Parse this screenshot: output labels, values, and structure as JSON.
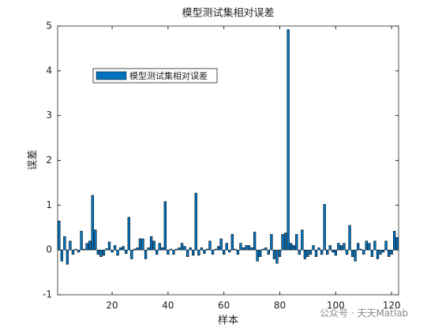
{
  "chart_data": {
    "type": "bar",
    "title": "模型测试集相对误差",
    "xlabel": "样本",
    "ylabel": "误差",
    "x": [
      1,
      2,
      3,
      4,
      5,
      6,
      7,
      8,
      9,
      10,
      11,
      12,
      13,
      14,
      15,
      16,
      17,
      18,
      19,
      20,
      21,
      22,
      23,
      24,
      25,
      26,
      27,
      28,
      29,
      30,
      31,
      32,
      33,
      34,
      35,
      36,
      37,
      38,
      39,
      40,
      41,
      42,
      43,
      44,
      45,
      46,
      47,
      48,
      49,
      50,
      51,
      52,
      53,
      54,
      55,
      56,
      57,
      58,
      59,
      60,
      61,
      62,
      63,
      64,
      65,
      66,
      67,
      68,
      69,
      70,
      71,
      72,
      73,
      74,
      75,
      76,
      77,
      78,
      79,
      80,
      81,
      82,
      83,
      84,
      85,
      86,
      87,
      88,
      89,
      90,
      91,
      92,
      93,
      94,
      95,
      96,
      97,
      98,
      99,
      100,
      101,
      102,
      103,
      104,
      105,
      106,
      107,
      108,
      109,
      110,
      111,
      112,
      113,
      114,
      115,
      116,
      117,
      118,
      119,
      120,
      121,
      122
    ],
    "series": [
      {
        "name": "模型测试集相对误差",
        "color": "#0072bd",
        "values": [
          0.65,
          -0.25,
          0.3,
          -0.32,
          0.2,
          -0.1,
          0.02,
          -0.05,
          0.42,
          0.02,
          0.15,
          0.2,
          1.22,
          0.45,
          -0.1,
          -0.15,
          -0.12,
          0.03,
          0.18,
          -0.05,
          0.1,
          -0.12,
          0.05,
          0.08,
          -0.08,
          0.73,
          -0.2,
          0.02,
          0.05,
          0.25,
          0.25,
          -0.2,
          0.05,
          0.3,
          0.2,
          -0.1,
          0.15,
          0.05,
          1.08,
          -0.1,
          0.02,
          -0.1,
          0.02,
          0.05,
          0.15,
          0.08,
          -0.15,
          0.05,
          -0.12,
          1.27,
          -0.12,
          0.05,
          -0.08,
          0.02,
          0.2,
          -0.1,
          0.02,
          0.08,
          0.25,
          -0.1,
          0.15,
          -0.05,
          0.35,
          0.02,
          -0.1,
          0.15,
          0.05,
          0.1,
          0.1,
          0.05,
          0.4,
          -0.25,
          -0.15,
          0.02,
          0.05,
          -0.1,
          0.35,
          -0.2,
          -0.3,
          -0.15,
          0.35,
          0.38,
          4.92,
          0.15,
          0.1,
          0.35,
          -0.1,
          0.45,
          -0.2,
          -0.15,
          -0.1,
          0.1,
          -0.15,
          0.05,
          -0.1,
          1.02,
          -0.1,
          0.1,
          -0.05,
          -0.12,
          0.15,
          0.1,
          0.15,
          -0.1,
          0.55,
          -0.15,
          -0.25,
          0.15,
          0.02,
          -0.1,
          0.2,
          0.15,
          -0.15,
          0.2,
          -0.2,
          -0.1,
          -0.05,
          0.2,
          -0.15,
          -0.1,
          0.42,
          0.28
        ]
      }
    ],
    "xlim": [
      0.5,
      122.5
    ],
    "ylim": [
      -1,
      5
    ],
    "xticks": [
      20,
      40,
      60,
      80,
      100,
      120
    ],
    "yticks": [
      -1,
      0,
      1,
      2,
      3,
      4,
      5
    ],
    "legend_position": "upper left",
    "watermark": "公众号 · 天天Matlab"
  }
}
